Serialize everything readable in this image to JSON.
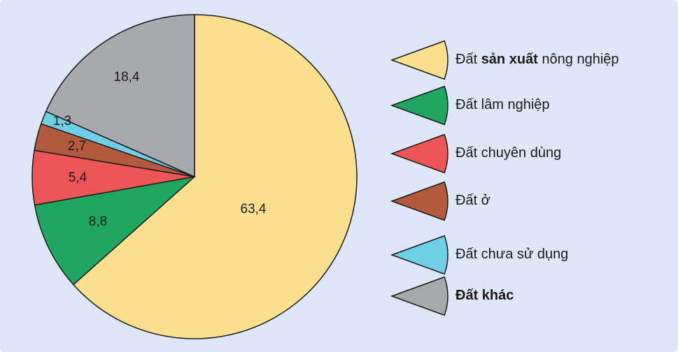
{
  "chart_data": {
    "type": "pie",
    "unit": "%",
    "slices": [
      {
        "label": "Đất sản xuất nông nghiệp",
        "value": 63.4,
        "value_label": "63,4",
        "color": "#fde08f"
      },
      {
        "label": "Đất lâm nghiệp",
        "value": 8.8,
        "value_label": "8,8",
        "color": "#1fa661"
      },
      {
        "label": "Đất chuyên dùng",
        "value": 5.4,
        "value_label": "5,4",
        "color": "#ee5557"
      },
      {
        "label": "Đất ở",
        "value": 2.7,
        "value_label": "2,7",
        "color": "#b35a3f"
      },
      {
        "label": "Đất chưa sử dụng",
        "value": 1.3,
        "value_label": "1,3",
        "color": "#6fd0e5"
      },
      {
        "label": "Đất khác",
        "value": 18.4,
        "value_label": "18,4",
        "color": "#a8a9ad"
      }
    ],
    "legend": {
      "position": "right",
      "entries": [
        {
          "parts": [
            {
              "text": "Đất ",
              "bold": false
            },
            {
              "text": "sản xuất",
              "bold": true
            },
            {
              "text": " nông nghiệp",
              "bold": false
            }
          ],
          "color": "#fde08f"
        },
        {
          "parts": [
            {
              "text": "Đất lâm nghiệp",
              "bold": false
            }
          ],
          "color": "#1fa661"
        },
        {
          "parts": [
            {
              "text": "Đất chuyên dùng",
              "bold": false
            }
          ],
          "color": "#ee5557"
        },
        {
          "parts": [
            {
              "text": "Đất ở",
              "bold": false
            }
          ],
          "color": "#b35a3f"
        },
        {
          "parts": [
            {
              "text": "Đất chưa sử dụng",
              "bold": false
            }
          ],
          "color": "#6fd0e5"
        },
        {
          "parts": [
            {
              "text": "Đất khác",
              "bold": true
            }
          ],
          "color": "#a8a9ad"
        }
      ]
    }
  }
}
